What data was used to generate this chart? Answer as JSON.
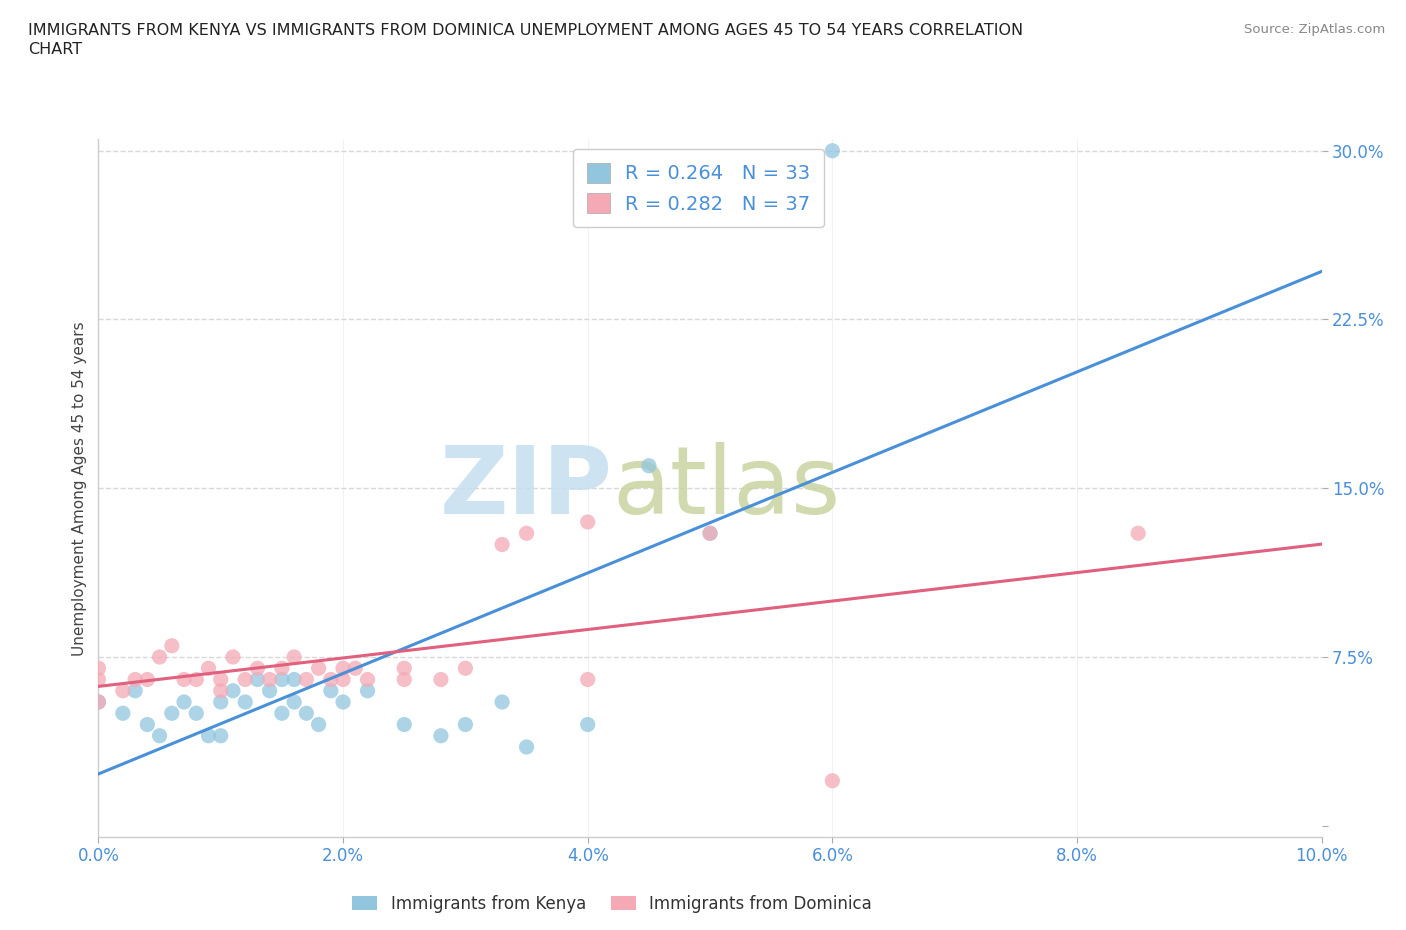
{
  "title_line1": "IMMIGRANTS FROM KENYA VS IMMIGRANTS FROM DOMINICA UNEMPLOYMENT AMONG AGES 45 TO 54 YEARS CORRELATION",
  "title_line2": "CHART",
  "source": "Source: ZipAtlas.com",
  "ylabel": "Unemployment Among Ages 45 to 54 years",
  "xlim": [
    0.0,
    0.1
  ],
  "ylim": [
    -0.005,
    0.305
  ],
  "xticks": [
    0.0,
    0.02,
    0.04,
    0.06,
    0.08,
    0.1
  ],
  "yticks": [
    0.0,
    0.075,
    0.15,
    0.225,
    0.3
  ],
  "xticklabels": [
    "0.0%",
    "2.0%",
    "4.0%",
    "6.0%",
    "8.0%",
    "10.0%"
  ],
  "yticklabels": [
    "",
    "7.5%",
    "15.0%",
    "22.5%",
    "30.0%"
  ],
  "kenya_color": "#92c5de",
  "dominica_color": "#f4a9b5",
  "kenya_line_color": "#4a90d9",
  "dominica_line_color": "#e0607e",
  "kenya_R": 0.264,
  "kenya_N": 33,
  "dominica_R": 0.282,
  "dominica_N": 37,
  "legend_label_kenya": "Immigrants from Kenya",
  "legend_label_dominica": "Immigrants from Dominica",
  "watermark_zip": "ZIP",
  "watermark_atlas": "atlas",
  "watermark_color_zip": "#d8e8f0",
  "watermark_color_atlas": "#d0d8b8",
  "background_color": "#ffffff",
  "grid_color": "#d8d8d8",
  "tick_color": "#4a90d9",
  "axis_color": "#cccccc",
  "kenya_x": [
    0.0,
    0.002,
    0.003,
    0.004,
    0.005,
    0.006,
    0.007,
    0.008,
    0.009,
    0.01,
    0.01,
    0.011,
    0.012,
    0.013,
    0.014,
    0.015,
    0.015,
    0.016,
    0.016,
    0.017,
    0.018,
    0.019,
    0.02,
    0.022,
    0.025,
    0.028,
    0.03,
    0.033,
    0.035,
    0.04,
    0.045,
    0.05,
    0.06
  ],
  "kenya_y": [
    0.055,
    0.05,
    0.06,
    0.045,
    0.04,
    0.05,
    0.055,
    0.05,
    0.04,
    0.04,
    0.055,
    0.06,
    0.055,
    0.065,
    0.06,
    0.05,
    0.065,
    0.055,
    0.065,
    0.05,
    0.045,
    0.06,
    0.055,
    0.06,
    0.045,
    0.04,
    0.045,
    0.055,
    0.035,
    0.045,
    0.16,
    0.13,
    0.3
  ],
  "dominica_x": [
    0.0,
    0.0,
    0.0,
    0.002,
    0.003,
    0.004,
    0.005,
    0.006,
    0.007,
    0.008,
    0.009,
    0.01,
    0.01,
    0.011,
    0.012,
    0.013,
    0.014,
    0.015,
    0.016,
    0.017,
    0.018,
    0.019,
    0.02,
    0.02,
    0.021,
    0.022,
    0.025,
    0.025,
    0.028,
    0.03,
    0.033,
    0.035,
    0.04,
    0.04,
    0.05,
    0.06,
    0.085
  ],
  "dominica_y": [
    0.055,
    0.065,
    0.07,
    0.06,
    0.065,
    0.065,
    0.075,
    0.08,
    0.065,
    0.065,
    0.07,
    0.06,
    0.065,
    0.075,
    0.065,
    0.07,
    0.065,
    0.07,
    0.075,
    0.065,
    0.07,
    0.065,
    0.07,
    0.065,
    0.07,
    0.065,
    0.07,
    0.065,
    0.065,
    0.07,
    0.125,
    0.13,
    0.135,
    0.065,
    0.13,
    0.02,
    0.13
  ]
}
